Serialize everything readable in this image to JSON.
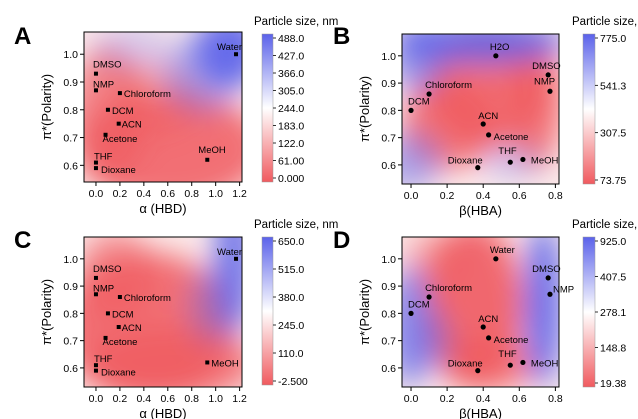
{
  "colors": {
    "red": "#f05a5f",
    "white": "#ffffff",
    "blue": "#5b62ea"
  },
  "chart_data": [
    {
      "panel": "A",
      "type": "heatmap",
      "xlabel": "α (HBD)",
      "ylabel": "π*(Polarity)",
      "colorbar_title": "Particle size, nm",
      "xlim": [
        -0.1,
        1.22
      ],
      "ylim": [
        0.54,
        1.08
      ],
      "xticks": [
        "0.0",
        "0.2",
        "0.4",
        "0.6",
        "0.8",
        "1.0",
        "1.2"
      ],
      "yticks": [
        "0.6",
        "0.7",
        "0.8",
        "0.9",
        "1.0"
      ],
      "colorbar_ticks": [
        "488.0",
        "427.0",
        "366.0",
        "305.0",
        "244.0",
        "183.0",
        "122.0",
        "61.00",
        "0.000"
      ],
      "marker": "square",
      "points": [
        {
          "label": "Water",
          "x": 1.17,
          "y": 1.0
        },
        {
          "label": "DMSO",
          "x": 0.0,
          "y": 0.93
        },
        {
          "label": "NMP",
          "x": 0.0,
          "y": 0.87
        },
        {
          "label": "Chloroform",
          "x": 0.2,
          "y": 0.86
        },
        {
          "label": "DCM",
          "x": 0.1,
          "y": 0.8
        },
        {
          "label": "ACN",
          "x": 0.19,
          "y": 0.75
        },
        {
          "label": "Acetone",
          "x": 0.08,
          "y": 0.71
        },
        {
          "label": "MeOH",
          "x": 0.93,
          "y": 0.62
        },
        {
          "label": "THF",
          "x": 0.0,
          "y": 0.61
        },
        {
          "label": "Dioxane",
          "x": 0.0,
          "y": 0.59
        }
      ]
    },
    {
      "panel": "B",
      "type": "heatmap",
      "xlabel": "β(HBA)",
      "ylabel": "π*(Polarity)",
      "colorbar_title": "Particle size, nm",
      "xlim": [
        -0.05,
        0.82
      ],
      "ylim": [
        0.53,
        1.08
      ],
      "xticks": [
        "0.0",
        "0.2",
        "0.4",
        "0.6",
        "0.8"
      ],
      "yticks": [
        "0.6",
        "0.7",
        "0.8",
        "0.9",
        "1.0"
      ],
      "colorbar_ticks": [
        "775.0",
        "541.3",
        "307.5",
        "73.75"
      ],
      "marker": "circle",
      "points": [
        {
          "label": "H2O",
          "x": 0.47,
          "y": 1.0
        },
        {
          "label": "DMSO",
          "x": 0.76,
          "y": 0.93
        },
        {
          "label": "NMP",
          "x": 0.77,
          "y": 0.87
        },
        {
          "label": "Chloroform",
          "x": 0.1,
          "y": 0.86
        },
        {
          "label": "DCM",
          "x": 0.0,
          "y": 0.8
        },
        {
          "label": "ACN",
          "x": 0.4,
          "y": 0.75
        },
        {
          "label": "Acetone",
          "x": 0.43,
          "y": 0.71
        },
        {
          "label": "THF",
          "x": 0.55,
          "y": 0.61
        },
        {
          "label": "MeOH",
          "x": 0.62,
          "y": 0.62
        },
        {
          "label": "Dioxane",
          "x": 0.37,
          "y": 0.59
        }
      ]
    },
    {
      "panel": "C",
      "type": "heatmap",
      "xlabel": "α (HBD)",
      "ylabel": "π*(Polarity)",
      "colorbar_title": "Particle size, nm",
      "xlim": [
        -0.1,
        1.22
      ],
      "ylim": [
        0.53,
        1.08
      ],
      "xticks": [
        "0.0",
        "0.2",
        "0.4",
        "0.6",
        "0.8",
        "1.0",
        "1.2"
      ],
      "yticks": [
        "0.6",
        "0.7",
        "0.8",
        "0.9",
        "1.0"
      ],
      "colorbar_ticks": [
        "650.0",
        "515.0",
        "380.0",
        "245.0",
        "110.0",
        "-2.500"
      ],
      "marker": "square",
      "points": [
        {
          "label": "Water",
          "x": 1.17,
          "y": 1.0
        },
        {
          "label": "DMSO",
          "x": 0.0,
          "y": 0.93
        },
        {
          "label": "NMP",
          "x": 0.0,
          "y": 0.87
        },
        {
          "label": "Chloroform",
          "x": 0.2,
          "y": 0.86
        },
        {
          "label": "DCM",
          "x": 0.1,
          "y": 0.8
        },
        {
          "label": "ACN",
          "x": 0.19,
          "y": 0.75
        },
        {
          "label": "Acetone",
          "x": 0.08,
          "y": 0.71
        },
        {
          "label": "MeOH",
          "x": 0.93,
          "y": 0.62
        },
        {
          "label": "THF",
          "x": 0.0,
          "y": 0.61
        },
        {
          "label": "Dioxane",
          "x": 0.0,
          "y": 0.59
        }
      ]
    },
    {
      "panel": "D",
      "type": "heatmap",
      "xlabel": "β(HBA)",
      "ylabel": "π*(Polarity)",
      "colorbar_title": "Particle size, nm",
      "xlim": [
        -0.05,
        0.82
      ],
      "ylim": [
        0.53,
        1.08
      ],
      "xticks": [
        "0.0",
        "0.2",
        "0.4",
        "0.6",
        "0.8"
      ],
      "yticks": [
        "0.6",
        "0.7",
        "0.8",
        "0.9",
        "1.0"
      ],
      "colorbar_ticks": [
        "925.0",
        "407.5",
        "278.1",
        "148.8",
        "19.38"
      ],
      "marker": "circle",
      "points": [
        {
          "label": "Water",
          "x": 0.47,
          "y": 1.0
        },
        {
          "label": "DMSO",
          "x": 0.76,
          "y": 0.93
        },
        {
          "label": "NMP",
          "x": 0.77,
          "y": 0.87
        },
        {
          "label": "Chloroform",
          "x": 0.1,
          "y": 0.86
        },
        {
          "label": "DCM",
          "x": 0.0,
          "y": 0.8
        },
        {
          "label": "ACN",
          "x": 0.4,
          "y": 0.75
        },
        {
          "label": "Acetone",
          "x": 0.43,
          "y": 0.71
        },
        {
          "label": "THF",
          "x": 0.55,
          "y": 0.61
        },
        {
          "label": "MeOH",
          "x": 0.62,
          "y": 0.62
        },
        {
          "label": "Dioxane",
          "x": 0.37,
          "y": 0.59
        }
      ]
    }
  ]
}
